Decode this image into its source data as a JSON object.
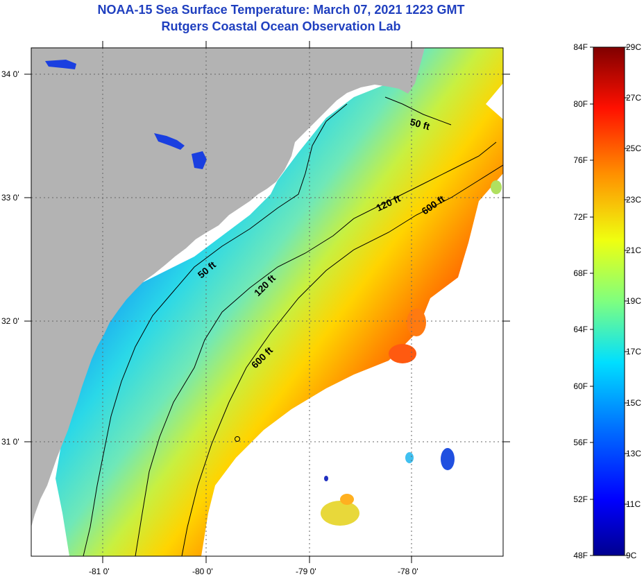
{
  "title": "NOAA-15 Sea Surface Temperature:  March 07, 2021 1223 GMT",
  "subtitle": "Rutgers Coastal Ocean Observation Lab",
  "axes": {
    "lat_labels": [
      "34 0'",
      "33 0'",
      "32 0'",
      "31 0'"
    ],
    "lon_labels": [
      "-81 0'",
      "-80 0'",
      "-79 0'",
      "-78 0'"
    ]
  },
  "contours": [
    "50 ft",
    "120 ft",
    "600 ft",
    "50 ft",
    "120 ft",
    "600 ft"
  ],
  "colorbar": {
    "fahrenheit": [
      "84F",
      "80F",
      "76F",
      "72F",
      "68F",
      "64F",
      "60F",
      "56F",
      "52F",
      "48F"
    ],
    "celsius": [
      "29C",
      "27C",
      "25C",
      "23C",
      "21C",
      "19C",
      "17C",
      "15C",
      "13C",
      "11C",
      "9C"
    ]
  },
  "colors": {
    "land": "#b3b3b3",
    "title": "#1f3fbf"
  }
}
